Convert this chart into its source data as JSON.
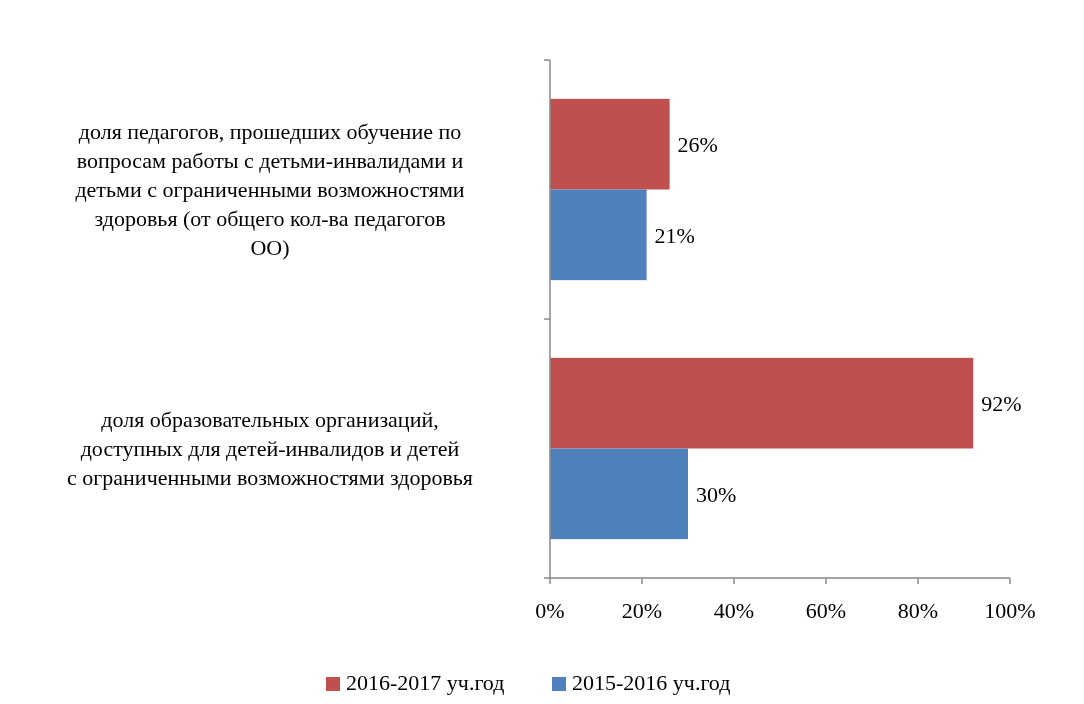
{
  "chart_data": {
    "type": "bar",
    "orientation": "horizontal",
    "categories": [
      "доля педагогов, прошедших обучение по вопросам работы с детьми-инвалидами и детьми с ограниченными возможностями здоровья (от общего кол-ва педагогов ОО)",
      "доля образовательных организаций, доступных для детей-инвалидов и детей с ограниченными возможностями здоровья"
    ],
    "series": [
      {
        "name": "2016-2017 уч.год",
        "color": "#c0504d",
        "values": [
          26,
          92
        ],
        "value_labels": [
          "26%",
          "92%"
        ]
      },
      {
        "name": "2015-2016 уч.год",
        "color": "#4f81bd",
        "values": [
          21,
          30
        ],
        "value_labels": [
          "21%",
          "30%"
        ]
      }
    ],
    "xlim": [
      0,
      100
    ],
    "xticks": [
      {
        "value": 0,
        "label": "0%"
      },
      {
        "value": 20,
        "label": "20%"
      },
      {
        "value": 40,
        "label": "40%"
      },
      {
        "value": 60,
        "label": "60%"
      },
      {
        "value": 80,
        "label": "80%"
      },
      {
        "value": 100,
        "label": "100%"
      }
    ],
    "legend": "bottom",
    "grid": false
  }
}
